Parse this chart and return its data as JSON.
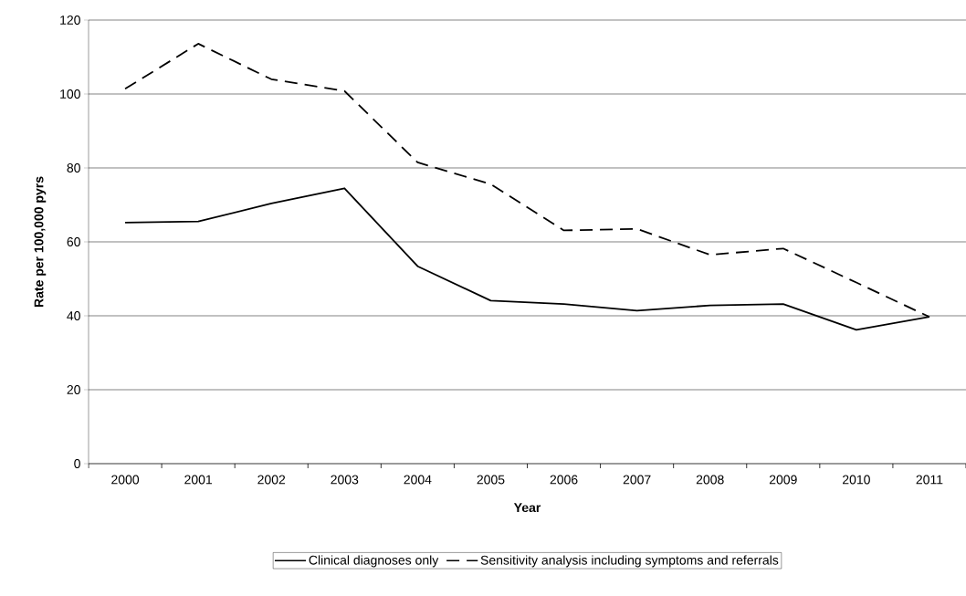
{
  "chart_data": {
    "type": "line",
    "xlabel": "Year",
    "ylabel": "Rate per 100,000 pyrs",
    "categories": [
      "2000",
      "2001",
      "2002",
      "2003",
      "2004",
      "2005",
      "2006",
      "2007",
      "2008",
      "2009",
      "2010",
      "2011"
    ],
    "series": [
      {
        "name": "Clinical diagnoses only",
        "color": "#000000",
        "line_style": "solid",
        "values": [
          65.2,
          65.5,
          70.4,
          74.5,
          53.4,
          44.1,
          43.2,
          41.4,
          42.8,
          43.2,
          36.2,
          39.7
        ]
      },
      {
        "name": "Sensitivity analysis including symptoms and referrals",
        "color": "#000000",
        "line_style": "dashed",
        "values": [
          101.4,
          113.6,
          104,
          100.8,
          81.5,
          75.6,
          63.1,
          63.5,
          56.5,
          58.2,
          49,
          39.7
        ]
      }
    ],
    "ylim": [
      0,
      120
    ],
    "yticks": [
      0,
      20,
      40,
      60,
      80,
      100,
      120
    ],
    "grid": "y",
    "legend": "bottom",
    "marker": "none"
  }
}
